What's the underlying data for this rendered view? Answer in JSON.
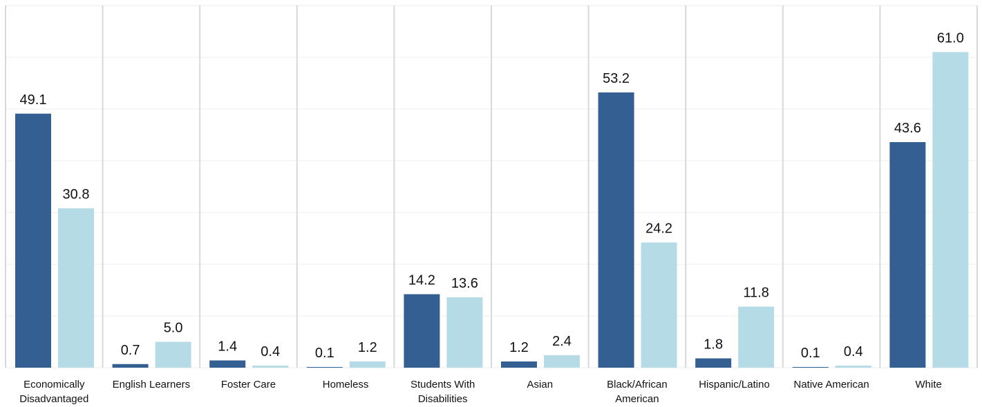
{
  "chart_data": {
    "type": "bar",
    "title": "",
    "xlabel": "",
    "ylabel": "",
    "ylim": [
      0,
      70
    ],
    "grid": true,
    "legend": "none",
    "categories": [
      [
        "Economically",
        "Disadvantaged"
      ],
      [
        "English Learners"
      ],
      [
        "Foster Care"
      ],
      [
        "Homeless"
      ],
      [
        "Students With",
        "Disabilities"
      ],
      [
        "Asian"
      ],
      [
        "Black/African",
        "American"
      ],
      [
        "Hispanic/Latino"
      ],
      [
        "Native American"
      ],
      [
        "White"
      ]
    ],
    "series": [
      {
        "color": "#345f92",
        "values": [
          49.1,
          0.7,
          1.4,
          0.1,
          14.2,
          1.2,
          53.2,
          1.8,
          0.1,
          43.6
        ],
        "labels": [
          "49.1",
          "0.7",
          "1.4",
          "0.1",
          "14.2",
          "1.2",
          "53.2",
          "1.8",
          "0.1",
          "43.6"
        ]
      },
      {
        "color": "#b5dce6",
        "values": [
          30.8,
          5.0,
          0.4,
          1.2,
          13.6,
          2.4,
          24.2,
          11.8,
          0.4,
          61.0
        ],
        "labels": [
          "30.8",
          "5.0",
          "0.4",
          "1.2",
          "13.6",
          "2.4",
          "24.2",
          "11.8",
          "0.4",
          "61.0"
        ]
      }
    ]
  }
}
